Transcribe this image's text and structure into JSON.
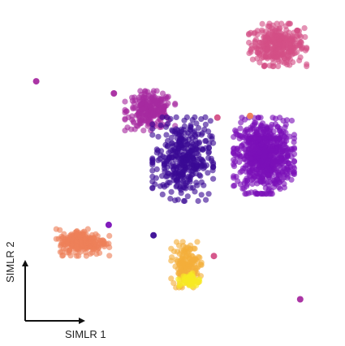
{
  "chart_data": {
    "type": "scatter",
    "xlabel": "SIMLR 1",
    "ylabel": "SIMLR 2",
    "axes_style": "arrow-corner",
    "grid": false,
    "legend": "none",
    "xlim": [
      0,
      100
    ],
    "ylim": [
      0,
      100
    ],
    "clusters": [
      {
        "color": "#d44f86",
        "center": [
          80.5,
          87.0
        ],
        "spread": [
          3.8,
          2.8
        ],
        "count": 320
      },
      {
        "color": "#a72aa0",
        "center": [
          43.5,
          68.0
        ],
        "spread": [
          3.3,
          2.6
        ],
        "count": 240
      },
      {
        "color": "#7a10b8",
        "center": [
          76.5,
          55.0
        ],
        "spread": [
          4.0,
          5.0
        ],
        "count": 700
      },
      {
        "color": "#3a0a95",
        "center": [
          53.0,
          54.0
        ],
        "spread": [
          4.0,
          5.5
        ],
        "count": 380
      },
      {
        "color": "#ee8058",
        "center": [
          24.0,
          30.0
        ],
        "spread": [
          3.5,
          1.8
        ],
        "count": 230
      },
      {
        "color": "#f3ae3a",
        "center": [
          54.0,
          23.5
        ],
        "spread": [
          2.0,
          3.0
        ],
        "count": 150
      },
      {
        "color": "#f7ea22",
        "center": [
          55.0,
          19.0
        ],
        "spread": [
          1.5,
          1.0
        ],
        "count": 50
      }
    ],
    "outliers": [
      {
        "x": 10.5,
        "y": 76.5,
        "color": "#a72aa0"
      },
      {
        "x": 87.0,
        "y": 13.5,
        "color": "#a72aa0"
      },
      {
        "x": 33.0,
        "y": 73.0,
        "color": "#a72aa0"
      },
      {
        "x": 63.0,
        "y": 66.0,
        "color": "#d44f86"
      },
      {
        "x": 72.5,
        "y": 66.5,
        "color": "#ee8058"
      },
      {
        "x": 62.0,
        "y": 26.0,
        "color": "#d44f86"
      },
      {
        "x": 44.5,
        "y": 32.0,
        "color": "#3a0a95"
      },
      {
        "x": 31.5,
        "y": 35.0,
        "color": "#7a10b8"
      }
    ]
  }
}
